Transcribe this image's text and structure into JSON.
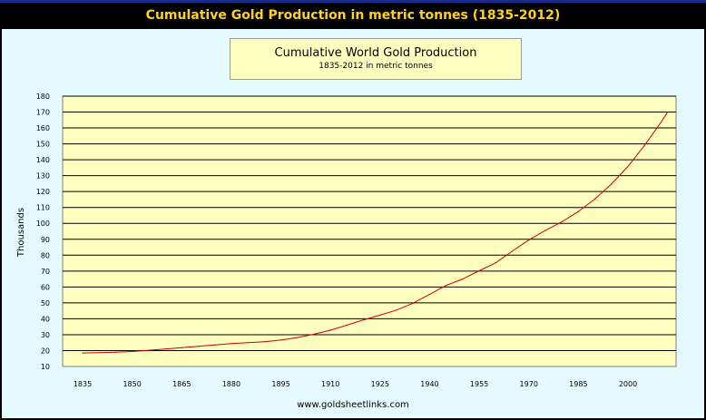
{
  "header": {
    "title": "Cumulative Gold Production in metric tonnes (1835-2012)"
  },
  "footer": {
    "source": "www.goldsheetlinks.com"
  },
  "colors": {
    "header_bg": "#000000",
    "header_text": "#ffd21a",
    "panel_bg": "#e6fbff",
    "plot_bg": "#ffffc0",
    "line": "#cc0000",
    "grid": "#000000"
  },
  "chart_data": {
    "type": "line",
    "title": "Cumulative World Gold Production",
    "subtitle": "1835-2012 in metric tonnes",
    "xlabel": "",
    "ylabel": "Thousands",
    "ylim": [
      10,
      180
    ],
    "xlim": [
      1835,
      2012
    ],
    "grid": true,
    "y_ticks": [
      10,
      20,
      30,
      40,
      50,
      60,
      70,
      80,
      90,
      100,
      110,
      120,
      130,
      140,
      150,
      160,
      170,
      180
    ],
    "x_ticks": [
      1835,
      1850,
      1865,
      1880,
      1895,
      1910,
      1925,
      1940,
      1955,
      1970,
      1985,
      2000
    ],
    "series": [
      {
        "name": "",
        "x": [
          1835,
          1840,
          1845,
          1850,
          1855,
          1860,
          1865,
          1870,
          1875,
          1880,
          1885,
          1890,
          1895,
          1900,
          1905,
          1910,
          1915,
          1920,
          1925,
          1930,
          1935,
          1940,
          1945,
          1950,
          1955,
          1960,
          1965,
          1970,
          1975,
          1980,
          1985,
          1990,
          1995,
          2000,
          2005,
          2010,
          2012
        ],
        "values": [
          18.5,
          18.7,
          19.0,
          19.4,
          20.2,
          21.0,
          21.8,
          22.7,
          23.6,
          24.4,
          25.0,
          25.6,
          26.6,
          28.2,
          30.3,
          32.8,
          36.0,
          39.3,
          42.3,
          45.5,
          49.8,
          55.4,
          61.0,
          65.0,
          70.2,
          75.2,
          82.5,
          89.5,
          95.5,
          101.0,
          107.5,
          115.3,
          124.7,
          135.8,
          149.0,
          163.5,
          170.0
        ]
      }
    ]
  }
}
